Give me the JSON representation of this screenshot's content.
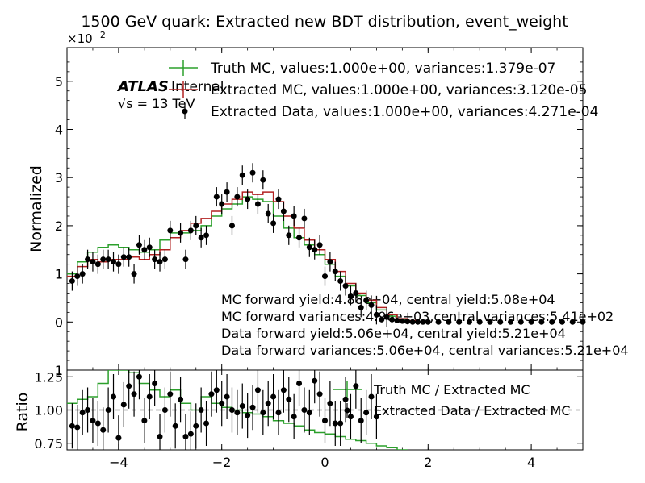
{
  "title": "1500 GeV quark: Extracted new BDT distribution, event_weight",
  "chart_data": [
    {
      "type": "line",
      "panel": "main",
      "ylabel": "Normalized",
      "y_exponent_label": "×10",
      "y_exponent_power": "−2",
      "xlim": [
        -5,
        5
      ],
      "ylim": [
        -1.0,
        5.7
      ],
      "y_tick_labels": [
        "1",
        "0",
        "1",
        "2",
        "3",
        "4",
        "5"
      ],
      "y_tick_values": [
        -1,
        0,
        1,
        2,
        3,
        4,
        5
      ],
      "atlas_label": "ATLAS",
      "atlas_sub": "Internal",
      "energy_label": "√s = 13 TeV",
      "legend": {
        "position": "top",
        "entries": [
          "Truth MC, values:1.000e+00, variances:1.379e-07",
          "Extracted MC, values:1.000e+00, variances:3.120e-05",
          "Extracted Data, values:1.000e+00, variances:4.271e-04"
        ]
      },
      "annotations": [
        "MC forward yield:4.88e+04, central yield:5.08e+04",
        "MC forward variances:4.96e+03,central variances:5.41e+02",
        "Data forward yield:5.06e+04, central yield:5.21e+04",
        "Data forward variances:5.06e+04, central variances:5.21e+04"
      ],
      "series": [
        {
          "name": "Truth MC",
          "style": "step",
          "color": "#2ca02c",
          "x": [
            -5.0,
            -4.8,
            -4.6,
            -4.4,
            -4.2,
            -4.0,
            -3.8,
            -3.6,
            -3.4,
            -3.2,
            -3.0,
            -2.8,
            -2.6,
            -2.4,
            -2.2,
            -2.0,
            -1.8,
            -1.6,
            -1.4,
            -1.2,
            -1.0,
            -0.8,
            -0.6,
            -0.4,
            -0.2,
            0.0,
            0.2,
            0.4,
            0.6,
            0.8,
            1.0,
            1.2,
            1.4,
            1.6,
            1.8
          ],
          "values": [
            1.0,
            1.25,
            1.45,
            1.55,
            1.6,
            1.55,
            1.5,
            1.45,
            1.5,
            1.7,
            1.85,
            1.85,
            1.9,
            2.0,
            2.2,
            2.35,
            2.45,
            2.6,
            2.55,
            2.5,
            2.2,
            1.95,
            1.75,
            1.6,
            1.4,
            1.2,
            0.95,
            0.75,
            0.55,
            0.4,
            0.25,
            0.12,
            0.05,
            0.02,
            0.0
          ]
        },
        {
          "name": "Extracted MC",
          "style": "step",
          "color": "#b22222",
          "x": [
            -5.0,
            -4.8,
            -4.6,
            -4.4,
            -4.2,
            -4.0,
            -3.8,
            -3.6,
            -3.4,
            -3.2,
            -3.0,
            -2.8,
            -2.6,
            -2.4,
            -2.2,
            -2.0,
            -1.8,
            -1.6,
            -1.4,
            -1.2,
            -1.0,
            -0.8,
            -0.6,
            -0.4,
            -0.2,
            0.0,
            0.2,
            0.4,
            0.6,
            0.8,
            1.0,
            1.2,
            1.4,
            1.6,
            1.8
          ],
          "values": [
            0.95,
            1.15,
            1.3,
            1.25,
            1.3,
            1.3,
            1.35,
            1.3,
            1.4,
            1.5,
            1.75,
            1.9,
            2.05,
            2.15,
            2.3,
            2.45,
            2.55,
            2.7,
            2.65,
            2.7,
            2.5,
            2.2,
            1.95,
            1.7,
            1.5,
            1.3,
            1.05,
            0.8,
            0.6,
            0.45,
            0.3,
            0.15,
            0.07,
            0.03,
            0.0
          ]
        },
        {
          "name": "Extracted Data",
          "style": "points",
          "color": "#000000",
          "x": [
            -4.9,
            -4.8,
            -4.7,
            -4.6,
            -4.5,
            -4.4,
            -4.3,
            -4.2,
            -4.1,
            -4.0,
            -3.9,
            -3.8,
            -3.7,
            -3.6,
            -3.5,
            -3.4,
            -3.3,
            -3.2,
            -3.1,
            -3.0,
            -2.8,
            -2.7,
            -2.6,
            -2.5,
            -2.4,
            -2.3,
            -2.1,
            -2.0,
            -1.9,
            -1.8,
            -1.7,
            -1.6,
            -1.5,
            -1.4,
            -1.3,
            -1.2,
            -1.1,
            -1.0,
            -0.9,
            -0.8,
            -0.7,
            -0.6,
            -0.5,
            -0.4,
            -0.3,
            -0.2,
            -0.1,
            0.0,
            0.1,
            0.2,
            0.3,
            0.4,
            0.5,
            0.6,
            0.7,
            0.8,
            0.9,
            1.0,
            1.1,
            1.2,
            1.3,
            1.4,
            1.5,
            1.6,
            1.7,
            1.8,
            1.9,
            2.0,
            2.2,
            2.4,
            2.6,
            2.8,
            3.0,
            3.2,
            3.4,
            3.6,
            3.8,
            4.0,
            4.2,
            4.4,
            4.6,
            4.8,
            5.0
          ],
          "values": [
            0.85,
            0.95,
            1.0,
            1.3,
            1.25,
            1.2,
            1.3,
            1.3,
            1.25,
            1.2,
            1.35,
            1.35,
            1.0,
            1.6,
            1.5,
            1.55,
            1.3,
            1.25,
            1.3,
            1.9,
            1.85,
            1.3,
            1.9,
            2.0,
            1.75,
            1.8,
            2.6,
            2.45,
            2.7,
            2.0,
            2.6,
            3.05,
            2.55,
            3.1,
            2.45,
            2.95,
            2.25,
            2.05,
            2.55,
            2.3,
            1.8,
            2.2,
            1.75,
            2.15,
            1.55,
            1.5,
            1.6,
            0.95,
            1.25,
            1.05,
            0.85,
            0.75,
            0.55,
            0.6,
            0.3,
            0.45,
            0.35,
            0.15,
            0.05,
            0.1,
            0.05,
            0.03,
            0.02,
            0.01,
            0.0,
            0.0,
            0.0,
            0.0,
            0.0,
            0.0,
            0.0,
            0.0,
            0.0,
            0.0,
            0.0,
            0.0,
            0.0,
            0.0,
            0.0,
            0.0,
            0.0,
            0.0,
            0.0
          ]
        }
      ]
    },
    {
      "type": "scatter",
      "panel": "ratio",
      "ylabel": "Ratio",
      "xlim": [
        -5,
        5
      ],
      "ylim": [
        0.7,
        1.3
      ],
      "x_tick_labels": [
        "−4",
        "−2",
        "0",
        "2",
        "4"
      ],
      "x_tick_values": [
        -4,
        -2,
        0,
        2,
        4
      ],
      "y_tick_labels": [
        "0.75",
        "1.00",
        "1.25"
      ],
      "y_tick_values": [
        0.75,
        1.0,
        1.25
      ],
      "reference_line": 1.0,
      "legend": {
        "position": "top-right",
        "entries": [
          "Truth MC / Extracted MC",
          "Extracted Data / Extracted MC"
        ]
      },
      "series": [
        {
          "name": "Truth MC / Extracted MC",
          "style": "step",
          "color": "#2ca02c",
          "x": [
            -5.0,
            -4.8,
            -4.6,
            -4.4,
            -4.2,
            -4.0,
            -3.8,
            -3.6,
            -3.4,
            -3.2,
            -3.0,
            -2.8,
            -2.6,
            -2.4,
            -2.2,
            -2.0,
            -1.8,
            -1.6,
            -1.4,
            -1.2,
            -1.0,
            -0.8,
            -0.6,
            -0.4,
            -0.2,
            0.0,
            0.2,
            0.4,
            0.6,
            0.8,
            1.0,
            1.2,
            1.4
          ],
          "values": [
            1.05,
            1.08,
            1.1,
            1.2,
            1.3,
            1.3,
            1.28,
            1.2,
            1.15,
            1.1,
            1.15,
            1.05,
            1.0,
            1.1,
            1.05,
            1.02,
            1.0,
            0.98,
            0.97,
            0.95,
            0.92,
            0.9,
            0.88,
            0.85,
            0.83,
            0.82,
            0.8,
            0.78,
            0.77,
            0.75,
            0.73,
            0.72,
            0.7
          ]
        },
        {
          "name": "Extracted Data / Extracted MC",
          "style": "points",
          "color": "#000000",
          "x": [
            -4.9,
            -4.8,
            -4.7,
            -4.6,
            -4.5,
            -4.4,
            -4.3,
            -4.2,
            -4.1,
            -4.0,
            -3.9,
            -3.8,
            -3.7,
            -3.6,
            -3.5,
            -3.4,
            -3.3,
            -3.2,
            -3.1,
            -3.0,
            -2.9,
            -2.8,
            -2.7,
            -2.6,
            -2.5,
            -2.4,
            -2.3,
            -2.2,
            -2.1,
            -2.0,
            -1.9,
            -1.8,
            -1.7,
            -1.6,
            -1.5,
            -1.4,
            -1.3,
            -1.2,
            -1.1,
            -1.0,
            -0.9,
            -0.8,
            -0.7,
            -0.6,
            -0.5,
            -0.4,
            -0.3,
            -0.2,
            -0.1,
            0.0,
            0.1,
            0.2,
            0.3,
            0.4,
            0.5,
            0.6,
            0.7,
            0.8,
            0.9,
            1.0
          ],
          "values": [
            0.88,
            0.87,
            0.98,
            1.0,
            0.92,
            0.9,
            0.85,
            1.0,
            1.1,
            0.79,
            1.04,
            1.18,
            1.12,
            1.25,
            0.92,
            1.1,
            1.2,
            0.8,
            1.0,
            1.12,
            0.88,
            1.08,
            0.8,
            0.82,
            0.88,
            1.0,
            0.9,
            1.12,
            1.15,
            1.05,
            1.1,
            1.0,
            0.98,
            1.03,
            0.96,
            1.02,
            1.15,
            0.98,
            1.05,
            1.1,
            0.98,
            1.15,
            1.08,
            0.95,
            1.2,
            1.0,
            0.98,
            1.22,
            1.12,
            0.92,
            1.05,
            0.9,
            0.9,
            1.08,
            0.95,
            1.18,
            0.92,
            0.98,
            1.1,
            0.95
          ]
        }
      ]
    }
  ]
}
